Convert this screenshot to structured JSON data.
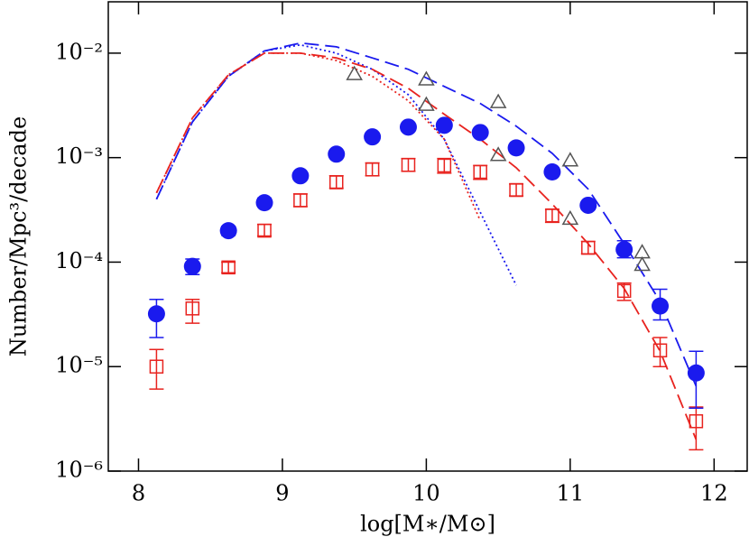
{
  "chart_data": {
    "type": "scatter",
    "x_label": "log[M∗/M⊙]",
    "y_label": "Number/Mpc³/decade",
    "xlim": [
      7.79,
      12.23
    ],
    "ylim": [
      1e-06,
      0.031
    ],
    "log_y": true,
    "xticks": [
      8,
      9,
      10,
      11,
      12
    ],
    "yticks": [
      {
        "value": 1e-06,
        "label": "10⁻⁶"
      },
      {
        "value": 1e-05,
        "label": "10⁻⁵"
      },
      {
        "value": 0.0001,
        "label": "10⁻⁴"
      },
      {
        "value": 0.001,
        "label": "10⁻³"
      },
      {
        "value": 0.01,
        "label": "10⁻²"
      }
    ],
    "series": [
      {
        "kind": "line",
        "line_style": "dotted",
        "color": "#1a1aee",
        "x": [
          8.125,
          8.375,
          8.625,
          8.875,
          9.125,
          9.375,
          9.625,
          9.875,
          10.125,
          10.375,
          10.625
        ],
        "values": [
          0.0004,
          0.0022,
          0.006,
          0.0105,
          0.012,
          0.01,
          0.007,
          0.004,
          0.0015,
          0.0003,
          6e-05
        ]
      },
      {
        "kind": "line",
        "line_style": "dotted",
        "color": "#e8231f",
        "x": [
          8.125,
          8.375,
          8.625,
          8.875,
          9.125,
          9.375,
          9.625,
          9.875,
          10.125,
          10.375
        ],
        "values": [
          0.00046,
          0.0024,
          0.0062,
          0.01,
          0.01,
          0.0085,
          0.006,
          0.0035,
          0.0015,
          0.00025
        ]
      },
      {
        "kind": "line",
        "line_style": "dashed",
        "color": "#1a1aee",
        "x": [
          8.125,
          8.375,
          8.625,
          8.875,
          9.125,
          9.375,
          9.625,
          9.875,
          10.125,
          10.375,
          10.625,
          10.875,
          11.125,
          11.375,
          11.625,
          11.875
        ],
        "values": [
          0.0004,
          0.0022,
          0.006,
          0.0105,
          0.0125,
          0.0115,
          0.009,
          0.007,
          0.0048,
          0.0033,
          0.002,
          0.0011,
          0.0005,
          0.00015,
          4.2e-05,
          6.5e-06
        ]
      },
      {
        "kind": "line",
        "line_style": "dashed",
        "color": "#e8231f",
        "x": [
          8.125,
          8.375,
          8.625,
          8.875,
          9.125,
          9.375,
          9.625,
          9.875,
          10.125,
          10.375,
          10.625,
          10.875,
          11.125,
          11.375,
          11.625,
          11.875
        ],
        "values": [
          0.00046,
          0.0024,
          0.0062,
          0.01,
          0.01,
          0.009,
          0.007,
          0.0046,
          0.0026,
          0.0015,
          0.0008,
          0.00036,
          0.00015,
          5.6e-05,
          1.4e-05,
          2e-06
        ]
      },
      {
        "kind": "points",
        "marker": "square",
        "color": "#e8231f",
        "x": [
          8.125,
          8.375,
          8.625,
          8.875,
          9.125,
          9.375,
          9.625,
          9.875,
          10.125,
          10.375,
          10.625,
          10.875,
          11.125,
          11.375,
          11.625,
          11.875
        ],
        "values": [
          1e-05,
          3.6e-05,
          8.9e-05,
          0.0002,
          0.00039,
          0.00058,
          0.00077,
          0.00085,
          0.00084,
          0.00073,
          0.00049,
          0.00028,
          0.000137,
          5.3e-05,
          1.43e-05,
          3e-06
        ],
        "lower": [
          6.1e-06,
          2.6e-05,
          7.9e-05,
          0.000178,
          0.00034,
          0.00051,
          0.00067,
          0.00074,
          0.00071,
          0.00062,
          0.00043,
          0.00024,
          0.00012,
          4.3e-05,
          1e-05,
          1.6e-06
        ],
        "upper": [
          1.46e-05,
          4.4e-05,
          0.0001,
          0.00023,
          0.00045,
          0.00067,
          0.00089,
          0.00098,
          0.00098,
          0.00084,
          0.00056,
          0.00032,
          0.000158,
          6.3e-05,
          1.9e-05,
          4.1e-06
        ]
      },
      {
        "kind": "points",
        "marker": "circle",
        "color": "#1a1aee",
        "x": [
          8.125,
          8.375,
          8.625,
          8.875,
          9.125,
          9.375,
          9.625,
          9.875,
          10.125,
          10.375,
          10.625,
          10.875,
          11.125,
          11.375,
          11.625,
          11.875
        ],
        "values": [
          3.2e-05,
          9.1e-05,
          0.0002,
          0.00037,
          0.00067,
          0.00108,
          0.00158,
          0.00196,
          0.00204,
          0.00174,
          0.00124,
          0.00073,
          0.00035,
          0.000132,
          3.8e-05,
          8.7e-06
        ],
        "lower": [
          1.9e-05,
          7.6e-05,
          0.00018,
          0.00034,
          0.00062,
          0.001,
          0.00148,
          0.00184,
          0.0019,
          0.00162,
          0.00114,
          0.00067,
          0.00032,
          0.00011,
          2.8e-05,
          4e-06
        ],
        "upper": [
          4.4e-05,
          0.000107,
          0.00022,
          0.00041,
          0.00072,
          0.00116,
          0.00168,
          0.0021,
          0.0022,
          0.00186,
          0.00134,
          0.0008,
          0.00038,
          0.00016,
          5.5e-05,
          1.4e-05
        ]
      },
      {
        "kind": "points",
        "marker": "triangle",
        "color": "#555555",
        "x": [
          9.5,
          10.0,
          10.0,
          10.5,
          10.5,
          11.0,
          11.0,
          11.5,
          11.5
        ],
        "values": [
          0.0063,
          0.0056,
          0.0032,
          0.0034,
          0.00106,
          0.00094,
          0.00026,
          0.000124,
          9.4e-05
        ]
      }
    ]
  }
}
